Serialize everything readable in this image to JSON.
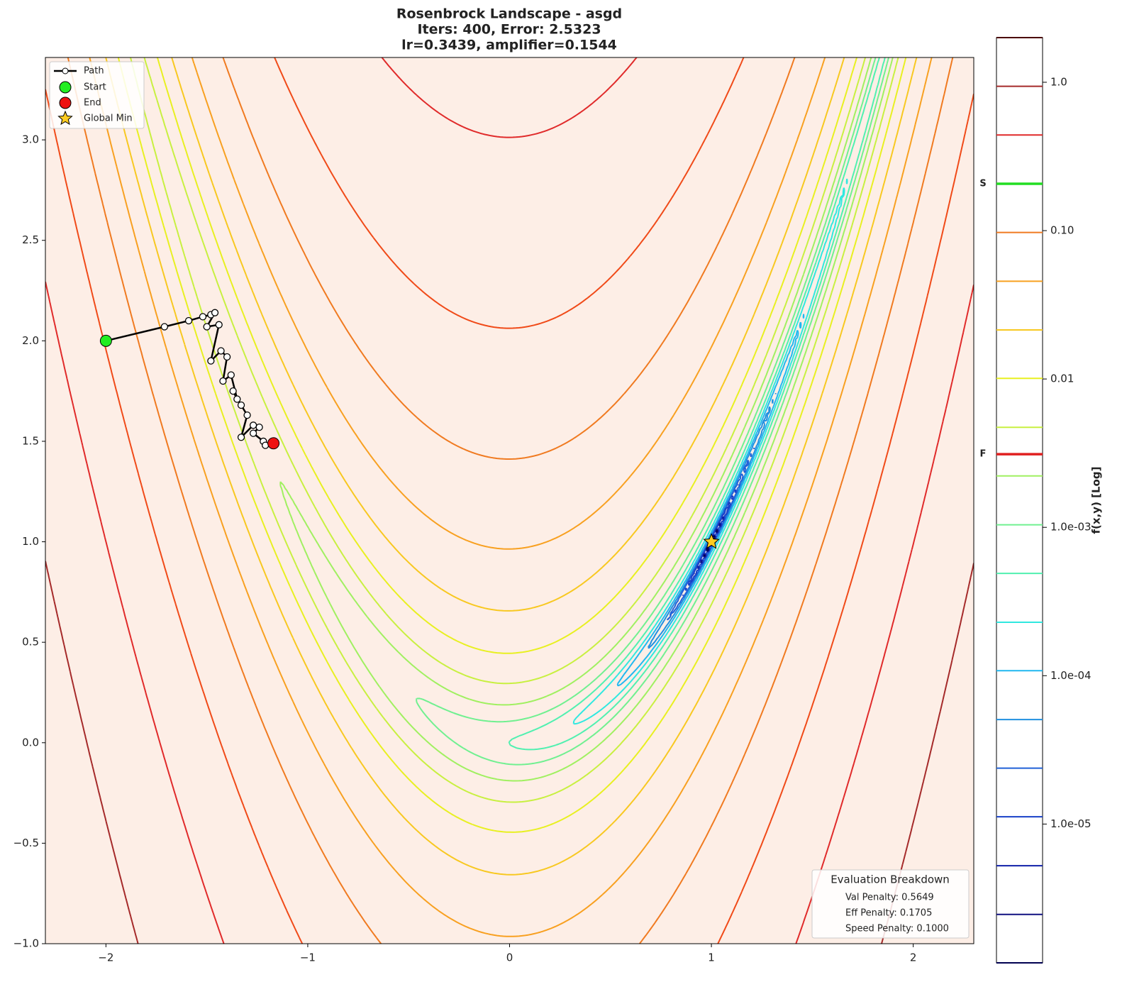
{
  "chart_data": {
    "type": "contour",
    "title": [
      "Rosenbrock Landscape - asgd",
      "Iters: 400, Error: 2.5323",
      "lr=0.3439, amplifier=0.1544"
    ],
    "xlim": [
      -2.3,
      2.3
    ],
    "ylim": [
      -1,
      3.41
    ],
    "xticks": [
      {
        "value": -2,
        "label": "−2"
      },
      {
        "value": -1,
        "label": "−1"
      },
      0,
      1,
      2
    ],
    "yticks": [
      {
        "value": -1,
        "label": "−1.0"
      },
      {
        "value": -0.5,
        "label": "−0.5"
      },
      {
        "value": 0,
        "label": "0.0"
      },
      {
        "value": 0.5,
        "label": "0.5"
      },
      {
        "value": 1,
        "label": "1.0"
      },
      {
        "value": 1.5,
        "label": "1.5"
      },
      {
        "value": 2,
        "label": "2.0"
      },
      {
        "value": 2.5,
        "label": "2.5"
      },
      {
        "value": 3,
        "label": "3.0"
      }
    ],
    "levels": [
      2.0,
      0.939,
      0.441,
      0.207,
      0.0972,
      0.0456,
      0.0214,
      0.0101,
      0.00472,
      0.00222,
      0.00104,
      0.000489,
      0.000229,
      0.000108,
      5.06e-05,
      2.38e-05,
      1.12e-05,
      5.24e-06,
      2.46e-06,
      1.16e-06
    ],
    "level_colors": [
      "#4b0000",
      "#a52a2a",
      "#e02a2a",
      "#f04a18",
      "#f07a20",
      "#f8a020",
      "#f8c820",
      "#e8f020",
      "#c8f040",
      "#a0f060",
      "#70f090",
      "#50f0b0",
      "#30e8e0",
      "#20b8f0",
      "#2090e0",
      "#2060d8",
      "#1840c8",
      "#1020a8",
      "#101080",
      "#000050"
    ],
    "colorbar": {
      "label": "f(x,y) [Log]",
      "log_scale": true,
      "zlim": [
        1.16e-06,
        2.0
      ],
      "ticks": [
        {
          "value": 1,
          "label": "1.0"
        },
        {
          "value": 0.1,
          "label": "0.10"
        },
        {
          "value": 0.01,
          "label": "0.01"
        },
        {
          "value": 0.001,
          "label": "1.0e-03"
        },
        {
          "value": 0.0001,
          "label": "1.0e-04"
        },
        {
          "value": 1e-05,
          "label": "1.0e-05"
        }
      ],
      "markers": [
        {
          "label": "S",
          "value": 0.207,
          "color": "#22dd22"
        },
        {
          "label": "F",
          "value": 0.00311,
          "color": "#e02020"
        }
      ]
    },
    "series": [
      {
        "name": "Path",
        "color": "#000000",
        "x": [
          -2,
          -1.71,
          -1.59,
          -1.52,
          -1.48,
          -1.46,
          -1.5,
          -1.44,
          -1.48,
          -1.43,
          -1.4,
          -1.42,
          -1.38,
          -1.35,
          -1.37,
          -1.33,
          -1.3,
          -1.33,
          -1.27,
          -1.24,
          -1.27,
          -1.22,
          -1.21
        ],
        "y": [
          2,
          2.07,
          2.1,
          2.12,
          2.13,
          2.14,
          2.07,
          2.08,
          1.9,
          1.95,
          1.92,
          1.8,
          1.83,
          1.71,
          1.75,
          1.68,
          1.63,
          1.52,
          1.58,
          1.57,
          1.54,
          1.5,
          1.48
        ]
      }
    ],
    "points": [
      {
        "name": "Start",
        "color": "#22ee22",
        "x": -2,
        "y": 2
      },
      {
        "name": "End",
        "color": "#ee1111",
        "x": -1.17,
        "y": 1.49
      },
      {
        "name": "Global Min",
        "color": "#ffcc22",
        "x": 1,
        "y": 1
      }
    ],
    "breakdown": {
      "title": "Evaluation Breakdown",
      "lines": [
        "Val Penalty: 0.5649",
        "Eff Penalty: 0.1705",
        "Speed Penalty: 0.1000"
      ]
    }
  }
}
